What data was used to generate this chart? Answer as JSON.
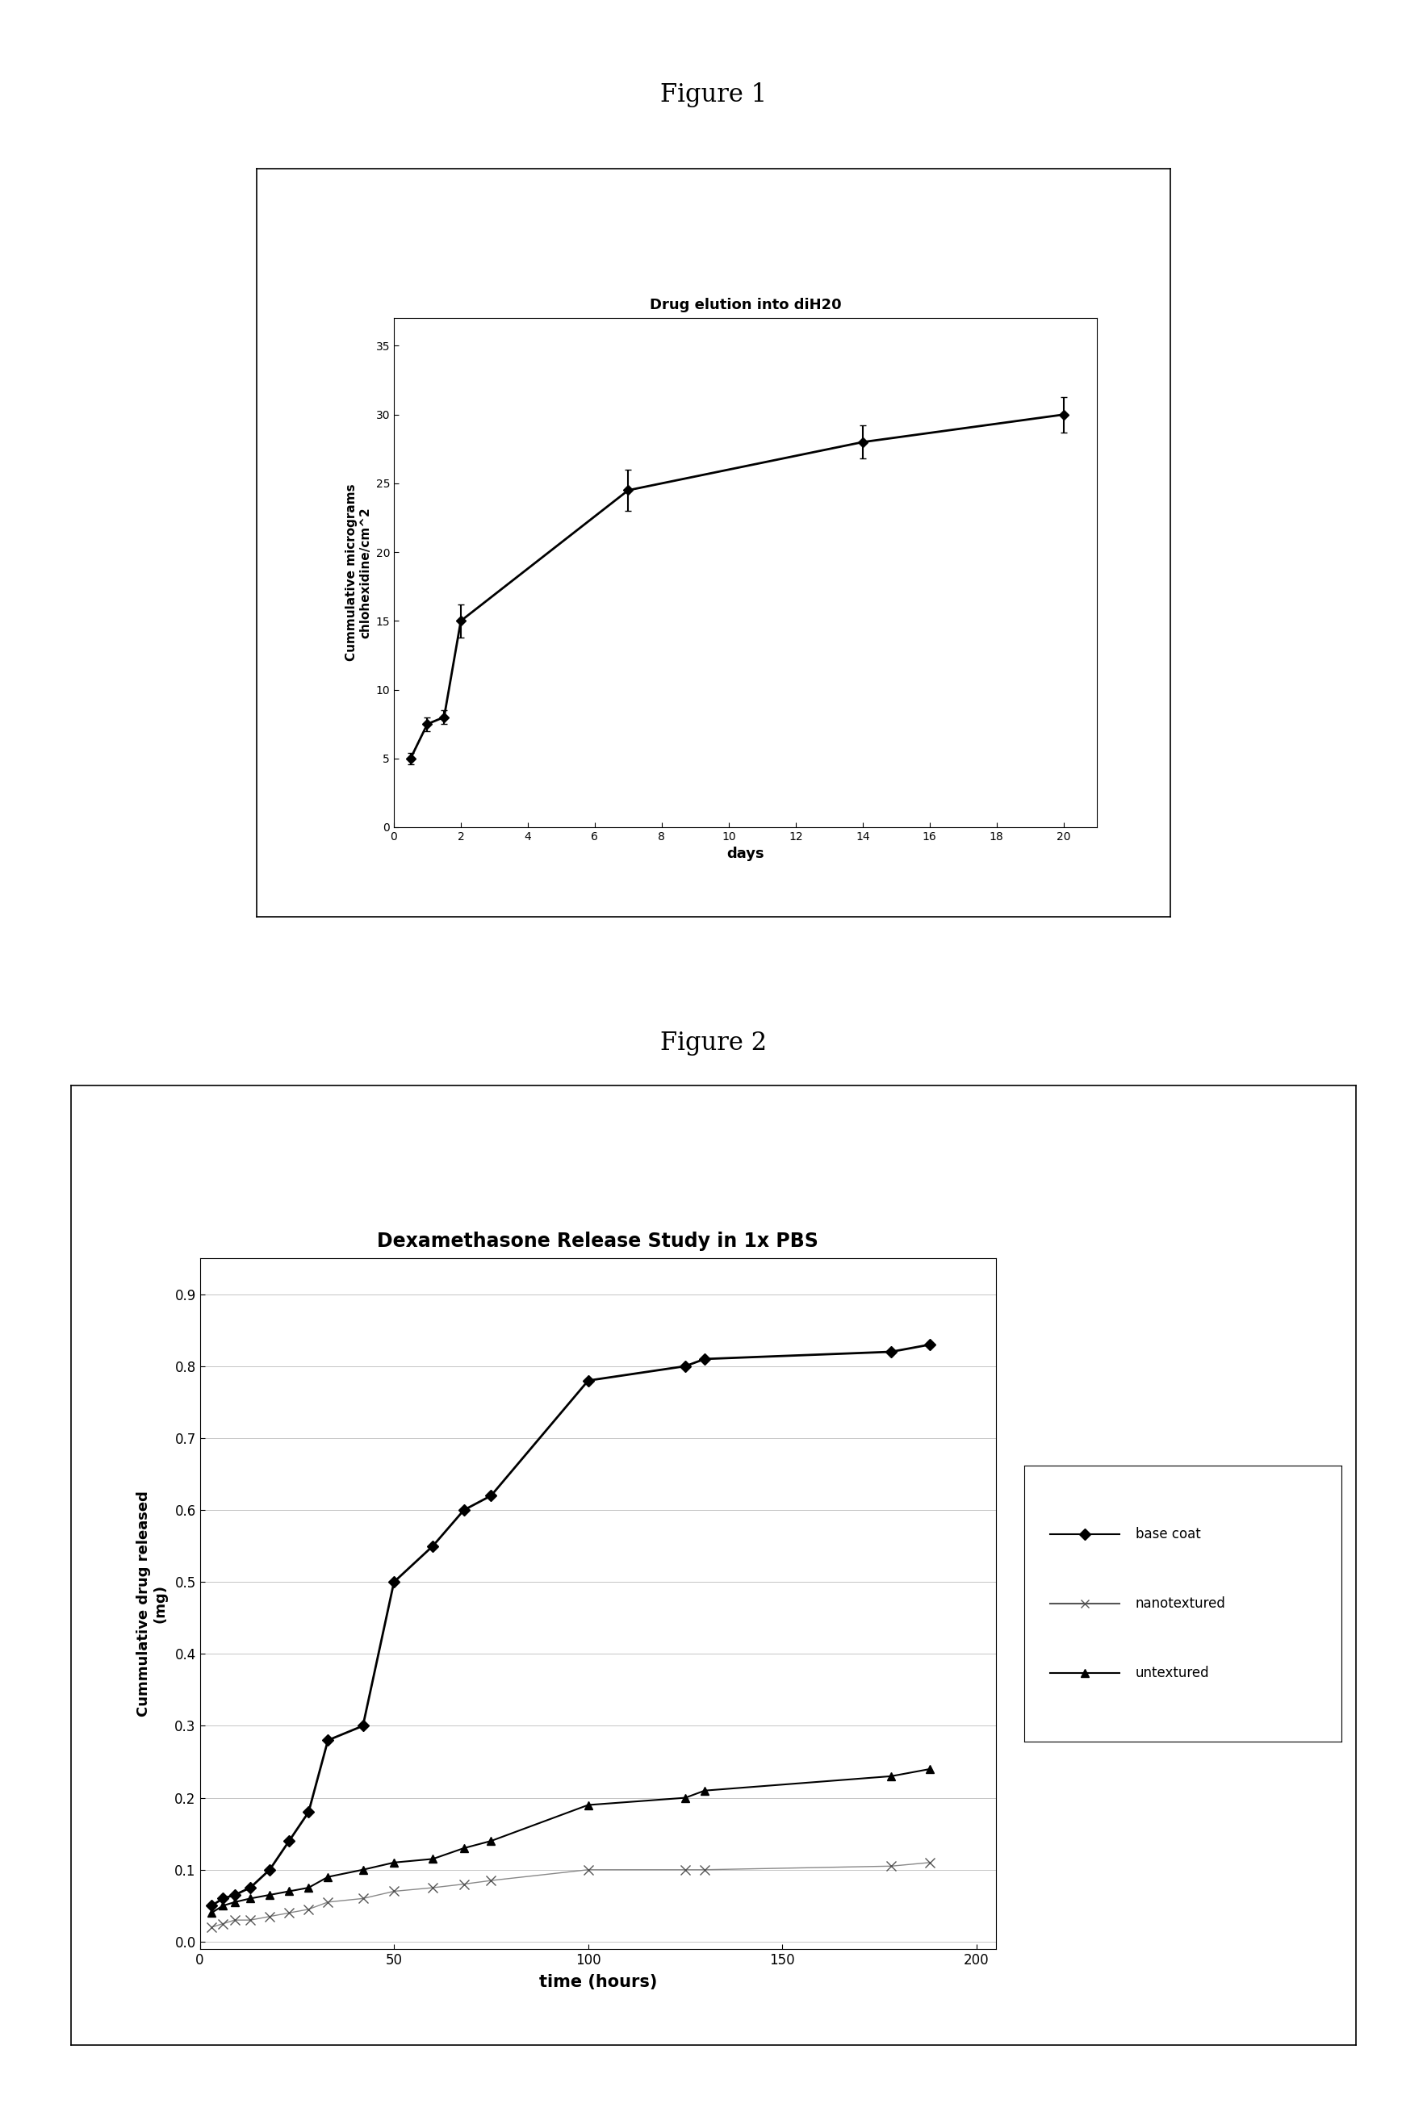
{
  "fig1": {
    "title": "Drug elution into diH20",
    "xlabel": "days",
    "ylabel": "Cummulative micrograms\nchlohexidine/cm^2",
    "x": [
      0.5,
      1.0,
      1.5,
      2.0,
      7.0,
      14.0,
      20.0
    ],
    "y": [
      5.0,
      7.5,
      8.0,
      15.0,
      24.5,
      28.0,
      30.0
    ],
    "yerr": [
      0.4,
      0.5,
      0.5,
      1.2,
      1.5,
      1.2,
      1.3
    ],
    "xlim": [
      0,
      21
    ],
    "ylim": [
      0,
      37
    ],
    "xticks": [
      0,
      2,
      4,
      6,
      8,
      10,
      12,
      14,
      16,
      18,
      20
    ],
    "yticks": [
      0,
      5,
      10,
      15,
      20,
      25,
      30,
      35
    ],
    "color": "#000000"
  },
  "fig2": {
    "title": "Dexamethasone Release Study in 1x PBS",
    "xlabel": "time (hours)",
    "ylabel": "Cummulative drug released\n(mg)",
    "xlim": [
      0,
      205
    ],
    "ylim": [
      -0.01,
      0.95
    ],
    "xticks": [
      0,
      50,
      100,
      150,
      200
    ],
    "yticks": [
      0.0,
      0.1,
      0.2,
      0.3,
      0.4,
      0.5,
      0.6,
      0.7,
      0.8,
      0.9
    ],
    "base_coat_x": [
      3,
      6,
      9,
      13,
      18,
      23,
      28,
      33,
      42,
      50,
      60,
      68,
      75,
      100,
      125,
      130,
      178,
      188
    ],
    "base_coat_y": [
      0.05,
      0.06,
      0.065,
      0.075,
      0.1,
      0.14,
      0.18,
      0.28,
      0.3,
      0.5,
      0.55,
      0.6,
      0.62,
      0.78,
      0.8,
      0.81,
      0.82,
      0.83
    ],
    "nanotextured_x": [
      3,
      6,
      9,
      13,
      18,
      23,
      28,
      33,
      42,
      50,
      60,
      68,
      75,
      100,
      125,
      130,
      178,
      188
    ],
    "nanotextured_y": [
      0.02,
      0.025,
      0.03,
      0.03,
      0.035,
      0.04,
      0.045,
      0.055,
      0.06,
      0.07,
      0.075,
      0.08,
      0.085,
      0.1,
      0.1,
      0.1,
      0.105,
      0.11
    ],
    "untextured_x": [
      3,
      6,
      9,
      13,
      18,
      23,
      28,
      33,
      42,
      50,
      60,
      68,
      75,
      100,
      125,
      130,
      178,
      188
    ],
    "untextured_y": [
      0.04,
      0.05,
      0.055,
      0.06,
      0.065,
      0.07,
      0.075,
      0.09,
      0.1,
      0.11,
      0.115,
      0.13,
      0.14,
      0.19,
      0.2,
      0.21,
      0.23,
      0.24
    ],
    "label_basecoat": "base coat",
    "label_nano": "nanotextured",
    "label_untextured": "untextured"
  },
  "figure1_label": "Figure 1",
  "figure2_label": "Figure 2",
  "bg_color": "#ffffff"
}
